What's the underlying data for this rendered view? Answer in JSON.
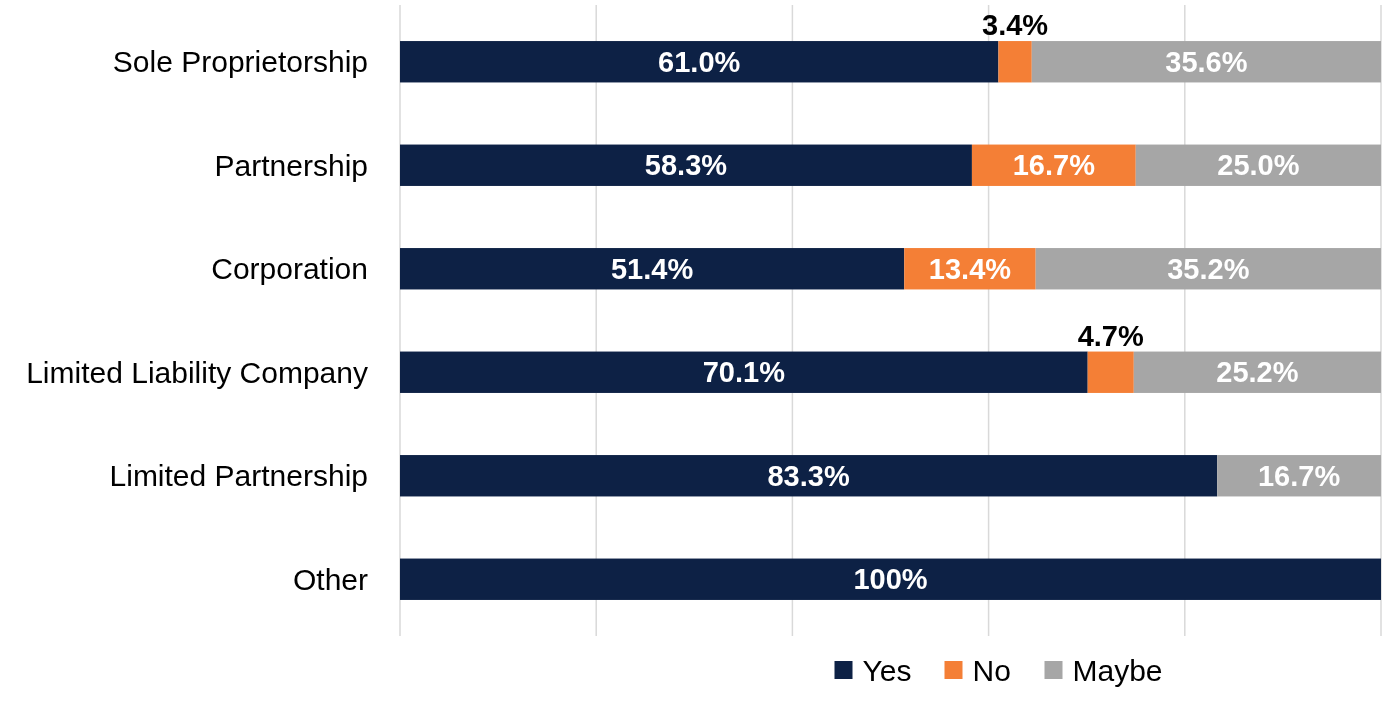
{
  "chart_data": {
    "type": "bar",
    "orientation": "horizontal",
    "stacked": true,
    "categories": [
      "Sole Proprietorship",
      "Partnership",
      "Corporation",
      "Limited Liability Company",
      "Limited Partnership",
      "Other"
    ],
    "series": [
      {
        "name": "Yes",
        "color": "#0d2145",
        "values": [
          61.0,
          58.3,
          51.4,
          70.1,
          83.3,
          100
        ],
        "value_labels": [
          "61.0%",
          "58.3%",
          "51.4%",
          "70.1%",
          "83.3%",
          "100%"
        ]
      },
      {
        "name": "No",
        "color": "#f47f36",
        "values": [
          3.4,
          16.7,
          13.4,
          4.7,
          null,
          null
        ],
        "value_labels": [
          "3.4%",
          "16.7%",
          "13.4%",
          "4.7%",
          null,
          null
        ]
      },
      {
        "name": "Maybe",
        "color": "#a6a6a6",
        "values": [
          35.6,
          25.0,
          35.2,
          25.2,
          16.7,
          null
        ],
        "value_labels": [
          "35.6%",
          "25.0%",
          "35.2%",
          "25.2%",
          "16.7%",
          null
        ]
      }
    ],
    "xlim": [
      0,
      100
    ],
    "xticks": [
      {
        "value": 0,
        "label": null
      },
      {
        "value": 20,
        "label": null
      },
      {
        "value": 40,
        "label": null
      },
      {
        "value": 60,
        "label": null
      },
      {
        "value": 80,
        "label": null
      },
      {
        "value": 100,
        "label": null
      }
    ],
    "tick_labels": "y",
    "grid": "x",
    "legend": "bottom"
  }
}
